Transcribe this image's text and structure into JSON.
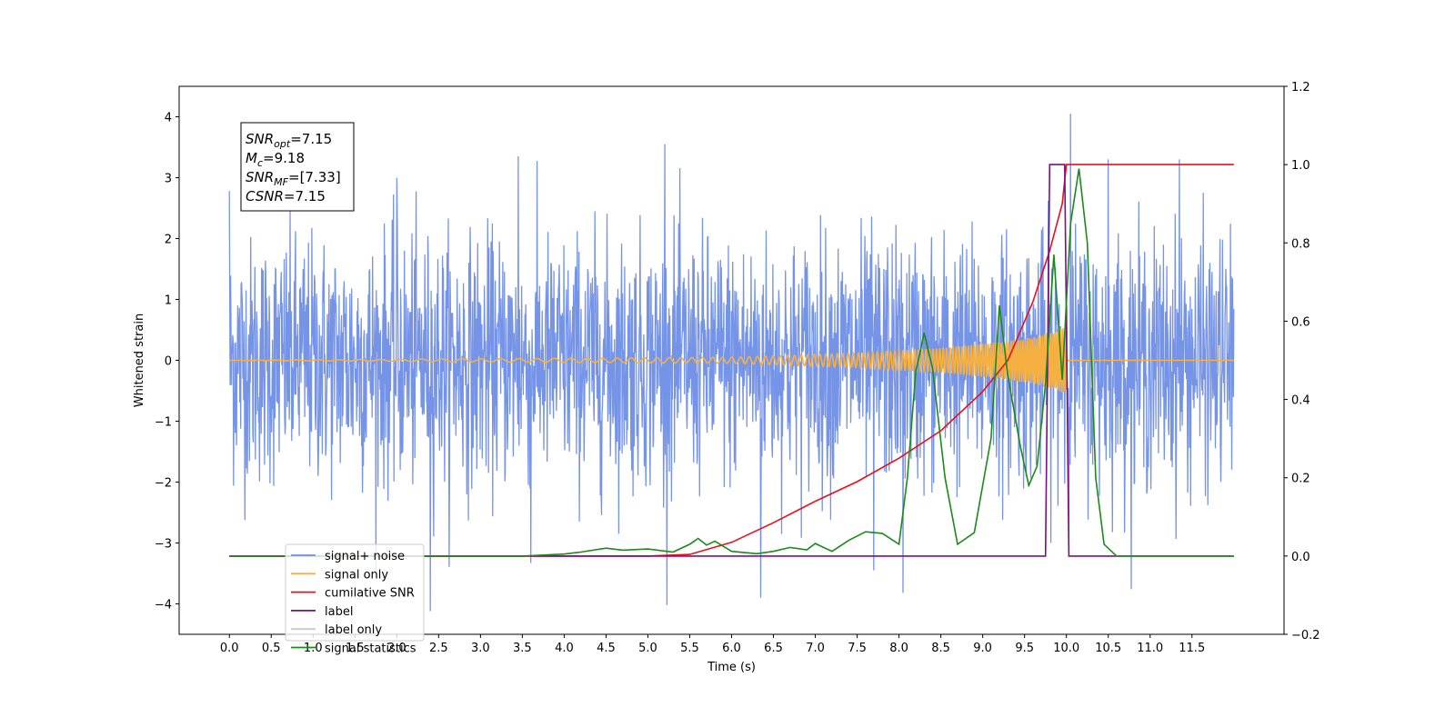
{
  "chart_data": {
    "type": "line",
    "title": "",
    "xlabel": "Time (s)",
    "ylabel": "Whitened strain",
    "y2label": "",
    "xlim": [
      -0.6,
      12.6
    ],
    "ylim": [
      -4.5,
      4.5
    ],
    "y2lim": [
      -0.2,
      1.2
    ],
    "x_ticks": [
      "0.0",
      "0.5",
      "1.0",
      "1.5",
      "2.0",
      "2.5",
      "3.0",
      "3.5",
      "4.0",
      "4.5",
      "5.0",
      "5.5",
      "6.0",
      "6.5",
      "7.0",
      "7.5",
      "8.0",
      "8.5",
      "9.0",
      "9.5",
      "10.0",
      "10.5",
      "11.0",
      "11.5"
    ],
    "y_ticks": [
      "4",
      "3",
      "2",
      "1",
      "0",
      "−1",
      "−2",
      "−3",
      "−4"
    ],
    "y_tick_values": [
      4,
      3,
      2,
      1,
      0,
      -1,
      -2,
      -3,
      -4
    ],
    "y2_ticks": [
      "1.2",
      "1.0",
      "0.8",
      "0.6",
      "0.4",
      "0.2",
      "0.0",
      "−0.2"
    ],
    "y2_tick_values": [
      1.2,
      1.0,
      0.8,
      0.6,
      0.4,
      0.2,
      0.0,
      -0.2
    ],
    "grid": false,
    "legend_position": "bottom-left",
    "annotation": {
      "lines": [
        {
          "sym": "SNR",
          "sub": "opt",
          "val": "=7.15"
        },
        {
          "sym": "M",
          "sub": "c",
          "val": "=9.18"
        },
        {
          "sym": "SNR",
          "sub": "MF",
          "val": "=[7.33]"
        },
        {
          "sym": "CSNR",
          "sub": "",
          "val": "=7.15"
        }
      ]
    },
    "series": [
      {
        "name": "signal+ noise",
        "color": "#6f8ee6",
        "axis": "left",
        "kind": "noise",
        "x_range": [
          0,
          12
        ],
        "amplitude_band": 1.0,
        "peaks": [
          {
            "x": 0.0,
            "y": 2.78
          },
          {
            "x": 2.0,
            "y": 3.0
          },
          {
            "x": 3.45,
            "y": 3.35
          },
          {
            "x": 5.2,
            "y": 3.55
          },
          {
            "x": 10.05,
            "y": 4.05
          },
          {
            "x": 10.5,
            "y": 3.3
          },
          {
            "x": 11.35,
            "y": 3.3
          },
          {
            "x": 6.35,
            "y": -3.9
          },
          {
            "x": 7.7,
            "y": -3.45
          },
          {
            "x": 8.05,
            "y": -3.82
          },
          {
            "x": 2.4,
            "y": -4.12
          },
          {
            "x": 3.6,
            "y": -3.33
          }
        ]
      },
      {
        "name": "signal only",
        "color": "#f5b041",
        "axis": "left",
        "kind": "chirp",
        "x_range": [
          0,
          12
        ],
        "envelope": [
          [
            0,
            0.0
          ],
          [
            6.0,
            0.05
          ],
          [
            7.5,
            0.12
          ],
          [
            8.5,
            0.2
          ],
          [
            9.2,
            0.3
          ],
          [
            9.6,
            0.38
          ],
          [
            10.0,
            0.55
          ],
          [
            10.01,
            0.0
          ],
          [
            12.0,
            0.0
          ]
        ]
      },
      {
        "name": "cumilative SNR",
        "color": "#e8101a",
        "axis": "right",
        "points": [
          [
            0,
            0
          ],
          [
            5.0,
            0
          ],
          [
            5.5,
            0.004
          ],
          [
            6.0,
            0.035
          ],
          [
            6.5,
            0.085
          ],
          [
            7.0,
            0.14
          ],
          [
            7.5,
            0.19
          ],
          [
            8.0,
            0.25
          ],
          [
            8.5,
            0.32
          ],
          [
            9.0,
            0.42
          ],
          [
            9.3,
            0.5
          ],
          [
            9.6,
            0.65
          ],
          [
            9.8,
            0.78
          ],
          [
            9.95,
            0.9
          ],
          [
            10.0,
            1.0
          ],
          [
            12.0,
            1.0
          ]
        ]
      },
      {
        "name": "label",
        "color": "#7a1080",
        "axis": "right",
        "points": [
          [
            0,
            0
          ],
          [
            9.75,
            0
          ],
          [
            9.8,
            1.0
          ],
          [
            9.98,
            1.0
          ],
          [
            10.03,
            0
          ],
          [
            12,
            0
          ]
        ]
      },
      {
        "name": "label only",
        "color": "#c8c8c8",
        "axis": "right",
        "legend_only": true,
        "points": []
      },
      {
        "name": "signal statistics",
        "color": "#1a8a1a",
        "axis": "right",
        "points": [
          [
            0,
            0
          ],
          [
            3.5,
            0
          ],
          [
            4.0,
            0.005
          ],
          [
            4.2,
            0.01
          ],
          [
            4.5,
            0.02
          ],
          [
            4.7,
            0.015
          ],
          [
            5.0,
            0.018
          ],
          [
            5.3,
            0.01
          ],
          [
            5.5,
            0.03
          ],
          [
            5.6,
            0.045
          ],
          [
            5.7,
            0.028
          ],
          [
            5.8,
            0.038
          ],
          [
            6.0,
            0.012
          ],
          [
            6.3,
            0.006
          ],
          [
            6.5,
            0.012
          ],
          [
            6.7,
            0.022
          ],
          [
            6.9,
            0.016
          ],
          [
            7.0,
            0.032
          ],
          [
            7.2,
            0.012
          ],
          [
            7.4,
            0.04
          ],
          [
            7.6,
            0.062
          ],
          [
            7.8,
            0.058
          ],
          [
            8.0,
            0.03
          ],
          [
            8.1,
            0.2
          ],
          [
            8.2,
            0.47
          ],
          [
            8.3,
            0.57
          ],
          [
            8.4,
            0.48
          ],
          [
            8.55,
            0.2
          ],
          [
            8.7,
            0.03
          ],
          [
            8.9,
            0.06
          ],
          [
            9.1,
            0.3
          ],
          [
            9.2,
            0.64
          ],
          [
            9.3,
            0.46
          ],
          [
            9.45,
            0.28
          ],
          [
            9.55,
            0.18
          ],
          [
            9.65,
            0.23
          ],
          [
            9.75,
            0.44
          ],
          [
            9.85,
            0.77
          ],
          [
            9.95,
            0.45
          ],
          [
            10.05,
            0.85
          ],
          [
            10.15,
            0.99
          ],
          [
            10.25,
            0.8
          ],
          [
            10.35,
            0.2
          ],
          [
            10.45,
            0.03
          ],
          [
            10.6,
            0.0
          ],
          [
            12.0,
            0.0
          ]
        ]
      }
    ]
  }
}
